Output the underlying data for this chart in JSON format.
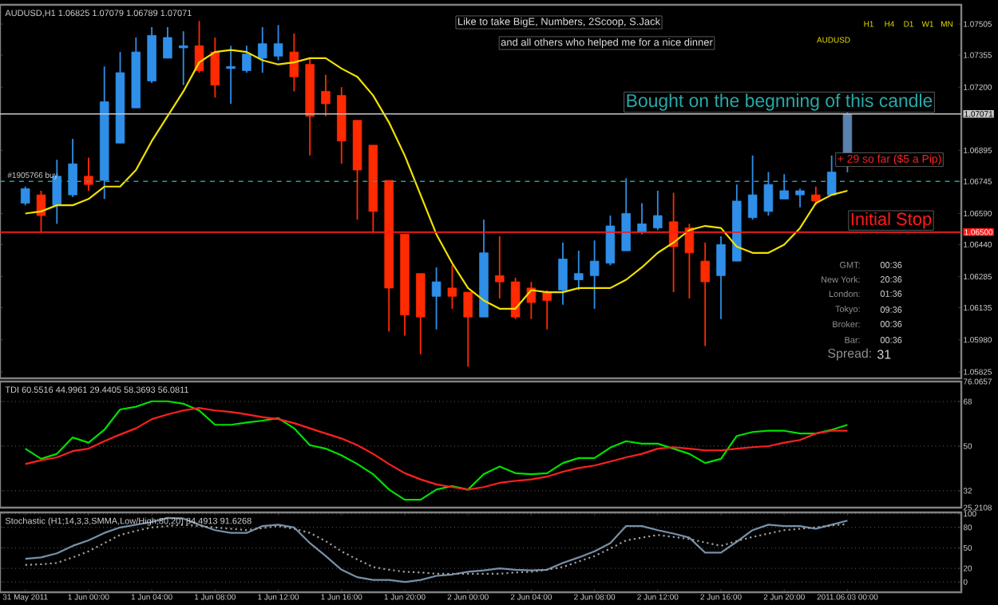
{
  "chart_data": [
    {
      "type": "candlestick",
      "title": "AUDUSD,H1 1.06825 1.07079 1.06789 1.07071",
      "categories": [
        null,
        null,
        null,
        null,
        null,
        null,
        null,
        null,
        null,
        null,
        null,
        null,
        null,
        null,
        null,
        null,
        null,
        null,
        null,
        null,
        null,
        null,
        null,
        null,
        null,
        null,
        null,
        null,
        null,
        null,
        null,
        null,
        null,
        null,
        null,
        null,
        null,
        null,
        null,
        null,
        null,
        null,
        null,
        null,
        null,
        null,
        null,
        null,
        null,
        null,
        null,
        null,
        null
      ],
      "ohlc": [
        [
          1.0664,
          1.0672,
          1.0663,
          1.0671
        ],
        [
          1.0668,
          1.067,
          1.065,
          1.0658
        ],
        [
          1.0663,
          1.0685,
          1.0654,
          1.0677
        ],
        [
          1.0668,
          1.0695,
          1.0667,
          1.0683
        ],
        [
          1.0677,
          1.0686,
          1.067,
          1.0673
        ],
        [
          1.0675,
          1.073,
          1.0666,
          1.0713
        ],
        [
          1.0693,
          1.0737,
          1.0693,
          1.0727
        ],
        [
          1.071,
          1.0744,
          1.071,
          1.0737
        ],
        [
          1.0723,
          1.0749,
          1.0722,
          1.0745
        ],
        [
          1.0734,
          1.0749,
          1.0734,
          1.0744
        ],
        [
          1.0739,
          1.0747,
          1.0721,
          1.074
        ],
        [
          1.074,
          1.0752,
          1.0727,
          1.0728
        ],
        [
          1.0737,
          1.0744,
          1.0715,
          1.0721
        ],
        [
          1.0729,
          1.074,
          1.0712,
          1.073
        ],
        [
          1.0728,
          1.074,
          1.0727,
          1.0736
        ],
        [
          1.0734,
          1.0749,
          1.0727,
          1.0741
        ],
        [
          1.0735,
          1.075,
          1.0733,
          1.0741
        ],
        [
          1.0737,
          1.0746,
          1.0718,
          1.0725
        ],
        [
          1.0731,
          1.0734,
          1.0687,
          1.0706
        ],
        [
          1.0718,
          1.0726,
          1.0706,
          1.0712
        ],
        [
          1.0716,
          1.072,
          1.0683,
          1.0694
        ],
        [
          1.0704,
          1.0704,
          1.0656,
          1.068
        ],
        [
          1.0692,
          1.0692,
          1.065,
          1.066
        ],
        [
          1.0675,
          1.0675,
          1.0602,
          1.0623
        ],
        [
          1.0649,
          1.0649,
          1.06,
          1.061
        ],
        [
          1.063,
          1.063,
          1.0591,
          1.0609
        ],
        [
          1.0619,
          1.0633,
          1.0603,
          1.0626
        ],
        [
          1.0623,
          1.0634,
          1.0613,
          1.0619
        ],
        [
          1.0621,
          1.0621,
          1.0585,
          1.0609
        ],
        [
          1.0609,
          1.0656,
          1.0609,
          1.064
        ],
        [
          1.0629,
          1.0648,
          1.0618,
          1.0626
        ],
        [
          1.0626,
          1.0628,
          1.0608,
          1.0609
        ],
        [
          1.0623,
          1.0626,
          1.0608,
          1.0616
        ],
        [
          1.0621,
          1.0622,
          1.0603,
          1.0617
        ],
        [
          1.0622,
          1.0645,
          1.0615,
          1.0637
        ],
        [
          1.0627,
          1.0641,
          1.0622,
          1.063
        ],
        [
          1.0629,
          1.0646,
          1.0613,
          1.0636
        ],
        [
          1.0635,
          1.0658,
          1.0634,
          1.0653
        ],
        [
          1.0641,
          1.0676,
          1.0641,
          1.0659
        ],
        [
          1.065,
          1.0664,
          1.0649,
          1.0654
        ],
        [
          1.0652,
          1.067,
          1.0651,
          1.0658
        ],
        [
          1.0655,
          1.0669,
          1.0621,
          1.0643
        ],
        [
          1.0652,
          1.0654,
          1.0618,
          1.064
        ],
        [
          1.0636,
          1.0645,
          1.0595,
          1.0626
        ],
        [
          1.0629,
          1.0648,
          1.0608,
          1.0644
        ],
        [
          1.0636,
          1.0673,
          1.0636,
          1.0665
        ],
        [
          1.0657,
          1.0687,
          1.0656,
          1.0668
        ],
        [
          1.066,
          1.0679,
          1.0658,
          1.0673
        ],
        [
          1.0666,
          1.0678,
          1.0666,
          1.067
        ],
        [
          1.0668,
          1.0671,
          1.0662,
          1.067
        ],
        [
          1.0668,
          1.0672,
          1.0663,
          1.0665
        ],
        [
          1.0668,
          1.0687,
          1.0668,
          1.0679
        ],
        [
          1.06825,
          1.07079,
          1.06789,
          1.07071
        ]
      ],
      "colors": [
        "#2f8fe8",
        "#ff2a00",
        "#2f8fe8",
        "#2f8fe8",
        "#ff2a00",
        "#2f8fe8",
        "#2f8fe8",
        "#2f8fe8",
        "#2f8fe8",
        "#2f8fe8",
        "#2f8fe8",
        "#ff2a00",
        "#ff2a00",
        "#2f8fe8",
        "#2f8fe8",
        "#2f8fe8",
        "#2f8fe8",
        "#ff2a00",
        "#ff2a00",
        "#ff2a00",
        "#ff2a00",
        "#ff2a00",
        "#ff2a00",
        "#ff2a00",
        "#ff2a00",
        "#ff2a00",
        "#2f8fe8",
        "#ff2a00",
        "#ff2a00",
        "#2f8fe8",
        "#ff2a00",
        "#ff2a00",
        "#ff2a00",
        "#ff2a00",
        "#2f8fe8",
        "#2f8fe8",
        "#2f8fe8",
        "#2f8fe8",
        "#2f8fe8",
        "#2f8fe8",
        "#2f8fe8",
        "#ff2a00",
        "#ff2a00",
        "#ff2a00",
        "#2f8fe8",
        "#2f8fe8",
        "#2f8fe8",
        "#2f8fe8",
        "#2f8fe8",
        "#2f8fe8",
        "#ff2a00",
        "#2f8fe8",
        "#5a82b0"
      ],
      "series": [
        {
          "type": "line",
          "color": "#f0e000",
          "values": [
            1.0659,
            1.066,
            1.0663,
            1.0663,
            1.0666,
            1.0672,
            1.0672,
            1.068,
            1.0694,
            1.0706,
            1.0718,
            1.0732,
            1.0737,
            1.0738,
            1.0737,
            1.0733,
            1.0731,
            1.0732,
            1.0734,
            1.0734,
            1.0729,
            1.0725,
            1.0716,
            1.0703,
            1.0687,
            1.0668,
            1.0649,
            1.0635,
            1.0623,
            1.0617,
            1.0613,
            1.0613,
            1.0622,
            1.0621,
            1.0621,
            1.0623,
            1.0623,
            1.0623,
            1.0627,
            1.0633,
            1.064,
            1.0645,
            1.0651,
            1.0653,
            1.0652,
            1.0643,
            1.064,
            1.064,
            1.0644,
            1.0652,
            1.0664,
            1.0668,
            1.067
          ]
        }
      ],
      "ylim": [
        1.05794,
        1.07598
      ],
      "yticks": [
        1.07505,
        1.07355,
        {
          "value": 1.072,
          "label": "1.07200"
        },
        1.07071,
        1.06895,
        1.06745,
        {
          "value": 1.0659,
          "label": "1.06590"
        },
        {
          "value": 1.065,
          "label": "1.06500"
        },
        {
          "value": 1.0644,
          "label": "1.06440"
        },
        1.06285,
        1.06135,
        {
          "value": 1.0598,
          "label": "1.05980"
        },
        1.05825
      ],
      "ref_lines": [
        {
          "axis": "y",
          "value": 1.07071,
          "color": "#c8c8c8"
        },
        {
          "axis": "y",
          "value": 1.06745,
          "color": "#20a0a0",
          "line_style": "dashed",
          "label": "#1905766 buy"
        },
        {
          "axis": "y",
          "value": 1.065,
          "color": "#ff1a1a",
          "label": "Initial Stop"
        }
      ],
      "annotations": [
        "Like to take BigE, Numbers, 2Scoop, S.Jack",
        "and all others who helped me for a nice dinner",
        "Bought on the begnning of this candle",
        "+ 29 so far ($5 a Pip)",
        "H1",
        "H4",
        "D1",
        "W1",
        "MN",
        "AUDUSD",
        "GMT:",
        "00:36",
        "New York:",
        "20:36",
        "London:",
        "01:36",
        "Tokyo:",
        "09:36",
        "Broker:",
        "00:36",
        "Bar:",
        "00:36",
        "Spread:",
        "31"
      ],
      "tick_labels": "y"
    },
    {
      "type": "line",
      "title": "TDI 60.5516 44.9961 29.4405 58.3693 56.0811",
      "categories": [
        null,
        null,
        null,
        null,
        null,
        null,
        null,
        null,
        null,
        null,
        null,
        null,
        null,
        null,
        null,
        null,
        null,
        null,
        null,
        null,
        null,
        null,
        null,
        null,
        null,
        null,
        null,
        null,
        null,
        null,
        null,
        null,
        null,
        null,
        null,
        null,
        null,
        null,
        null,
        null,
        null,
        null,
        null,
        null,
        null,
        null,
        null,
        null,
        null,
        null,
        null,
        null,
        null
      ],
      "series": [
        {
          "color": "#00e000",
          "values": [
            49.0,
            44.9,
            46.9,
            53.5,
            51.4,
            56.6,
            64.8,
            65.9,
            68.1,
            68.1,
            67.1,
            64.4,
            58.6,
            58.6,
            59.5,
            60.3,
            61.3,
            57.2,
            50.4,
            49.0,
            46.3,
            42.8,
            38.7,
            32.5,
            28.4,
            28.4,
            32.5,
            33.9,
            32.5,
            38.7,
            41.8,
            39.1,
            38.7,
            39.1,
            43.2,
            45.2,
            45.2,
            49.4,
            52.0,
            51.0,
            51.0,
            49.0,
            46.9,
            43.2,
            44.9,
            54.1,
            55.7,
            56.2,
            56.2,
            55.1,
            55.1,
            56.6,
            58.6
          ]
        },
        {
          "color": "#ff2020",
          "values": [
            42.8,
            44.3,
            45.5,
            48.0,
            49.0,
            52.0,
            54.7,
            57.2,
            60.9,
            62.8,
            64.4,
            65.4,
            64.4,
            63.8,
            62.8,
            61.7,
            60.9,
            59.3,
            57.2,
            55.1,
            53.1,
            50.4,
            46.9,
            42.8,
            39.1,
            36.6,
            34.6,
            33.5,
            32.5,
            33.5,
            35.2,
            36.0,
            36.6,
            37.7,
            39.7,
            41.2,
            42.2,
            43.8,
            45.5,
            46.9,
            49.0,
            49.6,
            49.0,
            48.3,
            48.3,
            49.0,
            49.6,
            50.0,
            51.4,
            52.5,
            55.1,
            56.2,
            56.2
          ]
        }
      ],
      "ylim": [
        25.2108,
        76.0657
      ],
      "yticks": [
        76.0657,
        68,
        50,
        32,
        25.2108
      ],
      "grid": "y",
      "tick_labels": "y"
    },
    {
      "type": "line",
      "title": "Stochastic (H1;14,3,3,SMMA,Low/High;80,20) 84.4913 91.6268",
      "categories": [
        "31 May 2011",
        null,
        null,
        null,
        "1 Jun 00:00",
        null,
        null,
        null,
        "1 Jun 04:00",
        null,
        null,
        null,
        "1 Jun 08:00",
        null,
        null,
        null,
        "1 Jun 12:00",
        null,
        null,
        null,
        "1 Jun 16:00",
        null,
        null,
        null,
        "1 Jun 20:00",
        null,
        null,
        null,
        "2 Jun 00:00",
        null,
        null,
        null,
        "2 Jun 04:00",
        null,
        null,
        null,
        "2 Jun 08:00",
        null,
        null,
        null,
        "2 Jun 12:00",
        null,
        null,
        null,
        "2 Jun 16:00",
        null,
        null,
        null,
        "2 Jun 20:00",
        null,
        null,
        null,
        "2011.06.03 00:00"
      ],
      "series": [
        {
          "color": "#7890a8",
          "values": [
            34,
            36,
            42,
            53,
            61,
            72,
            80,
            84,
            88,
            94,
            93,
            84,
            76,
            72,
            72,
            82,
            84,
            80,
            57,
            38,
            18,
            7,
            3,
            3,
            0,
            3,
            9,
            11,
            15,
            17,
            20,
            18,
            17,
            18,
            28,
            36,
            45,
            57,
            82,
            82,
            76,
            71,
            65,
            43,
            43,
            59,
            76,
            84,
            82,
            82,
            78,
            84,
            90
          ]
        },
        {
          "color": "#a0a0a0",
          "line_style": "dotted",
          "values": [
            25,
            26,
            28,
            36,
            45,
            57,
            69,
            75,
            80,
            82,
            84,
            82,
            80,
            78,
            76,
            79,
            82,
            78,
            72,
            60,
            45,
            33,
            22,
            18,
            15,
            14,
            12,
            12,
            12,
            12,
            12,
            14,
            15,
            18,
            22,
            30,
            38,
            49,
            61,
            65,
            69,
            66,
            63,
            58,
            53,
            60,
            66,
            71,
            76,
            78,
            80,
            83,
            85
          ]
        }
      ],
      "ylim": [
        -15,
        102
      ],
      "yticks": [
        100,
        80,
        50,
        20,
        0
      ],
      "grid": "y"
    }
  ]
}
